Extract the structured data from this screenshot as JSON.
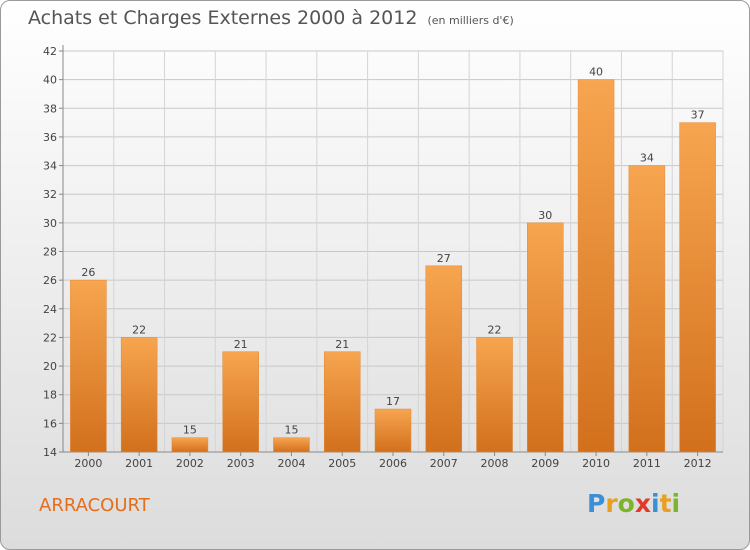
{
  "title": "Achats et Charges Externes 2000 à 2012",
  "subtitle": "(en milliers d'€)",
  "commune": "ARRACOURT",
  "logo": {
    "letters": [
      "P",
      "r",
      "o",
      "x",
      "i",
      "t",
      "i"
    ],
    "colors": [
      "#3b8fd6",
      "#e8a020",
      "#7cb52a",
      "#e23a2a",
      "#3b8fd6",
      "#e8a020",
      "#7cb52a"
    ]
  },
  "colors": {
    "bar_top": "#f7a550",
    "bar_bottom": "#d2701c",
    "title": "#555555",
    "commune": "#e46e1c"
  },
  "chart_data": {
    "type": "bar",
    "categories": [
      "2000",
      "2001",
      "2002",
      "2003",
      "2004",
      "2005",
      "2006",
      "2007",
      "2008",
      "2009",
      "2010",
      "2011",
      "2012"
    ],
    "values": [
      26,
      22,
      15,
      21,
      15,
      21,
      17,
      27,
      22,
      30,
      40,
      34,
      37
    ],
    "ylim": [
      14,
      42
    ],
    "yticks": [
      14,
      16,
      18,
      20,
      22,
      24,
      26,
      28,
      30,
      32,
      34,
      36,
      38,
      40,
      42
    ],
    "grid": true
  }
}
